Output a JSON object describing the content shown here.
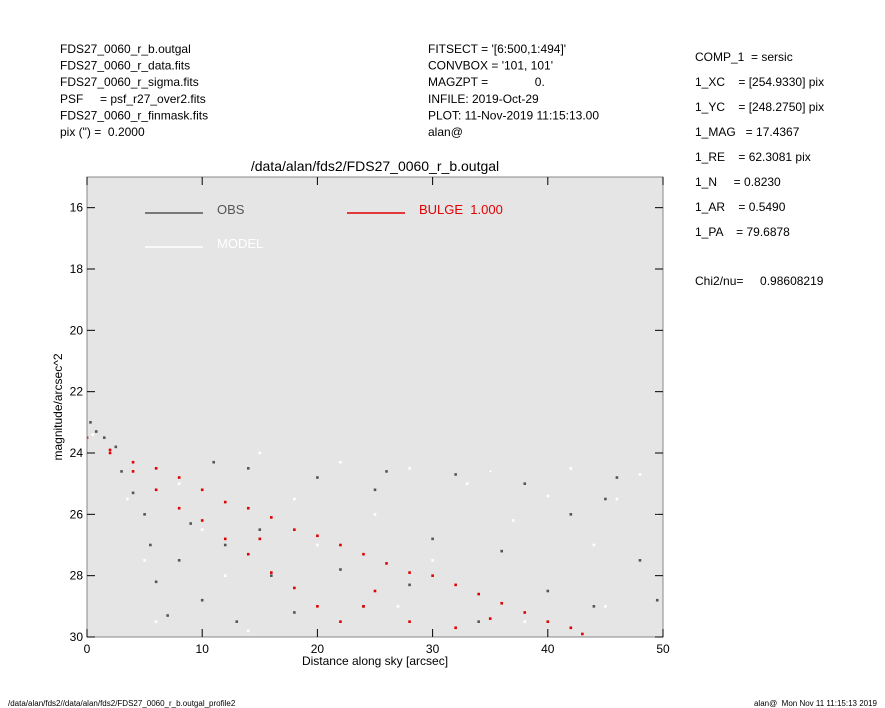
{
  "header": {
    "left": [
      "FDS27_0060_r_b.outgal",
      "FDS27_0060_r_data.fits",
      "FDS27_0060_r_sigma.fits",
      "PSF     = psf_r27_over2.fits",
      "FDS27_0060_r_finmask.fits",
      "pix (\") =  0.2000"
    ],
    "middle": [
      "FITSECT = '[6:500,1:494]'",
      "CONVBOX = '101, 101'",
      "MAGZPT =              0.",
      "INFILE: 2019-Oct-29",
      "PLOT: 11-Nov-2019 11:15:13.00",
      "alan@"
    ],
    "right": [
      "COMP_1  = sersic",
      "1_XC    = [254.9330] pix",
      "1_YC    = [248.2750] pix",
      "1_MAG   = 17.4367",
      "1_RE    = 62.3081 pix",
      "1_N     = 0.8230",
      "1_AR    = 0.5490",
      "1_PA    = 79.6878"
    ],
    "chi2": "Chi2/nu=     0.98608219"
  },
  "footer": {
    "left": "/data/alan/fds2//data/alan/fds2/FDS27_0060_r_b.outgal_profile2",
    "right": "alan@  Mon Nov 11 11:15:13 2019"
  },
  "chart_data": {
    "type": "scatter",
    "title": "/data/alan/fds2/FDS27_0060_r_b.outgal",
    "x_label": "Distance along sky [arcsec]",
    "y_label": "magnitude/arcsec^2",
    "xlim": [
      0,
      50
    ],
    "ylim": [
      30,
      15
    ],
    "xticks": [
      0,
      10,
      20,
      30,
      40,
      50
    ],
    "yticks": [
      16,
      18,
      20,
      22,
      24,
      26,
      28,
      30
    ],
    "background": "#e5e5e5",
    "series": [
      {
        "name": "OBS",
        "color": "#555555",
        "x": [
          0.3,
          0.8,
          1.5,
          2.5,
          3,
          4,
          5,
          5.5,
          6,
          7,
          8,
          9,
          10,
          11,
          12,
          13,
          14,
          15,
          16,
          18,
          20,
          22,
          24,
          26,
          28,
          30,
          32,
          34,
          36,
          38,
          40,
          42,
          44,
          46,
          48,
          49.5,
          25,
          35,
          45
        ],
        "y": [
          23.0,
          23.3,
          23.5,
          23.8,
          24.6,
          25.3,
          26.0,
          27.0,
          28.2,
          29.3,
          27.5,
          26.3,
          28.8,
          24.3,
          27.0,
          29.5,
          24.5,
          26.5,
          28.0,
          29.2,
          24.8,
          27.8,
          29.0,
          24.6,
          28.3,
          26.8,
          24.7,
          29.5,
          27.2,
          25.0,
          28.5,
          26.0,
          29.0,
          24.8,
          27.5,
          28.8,
          25.2,
          24.6,
          25.5
        ]
      },
      {
        "name": "MODEL",
        "color": "#ffffff",
        "x": [
          0.5,
          2,
          3.5,
          5,
          6,
          8,
          10,
          12,
          14,
          15,
          18,
          20,
          22,
          25,
          28,
          30,
          33,
          35,
          37,
          40,
          42,
          44,
          46,
          48,
          49.5,
          27,
          38,
          45
        ],
        "y": [
          23.4,
          24.0,
          25.5,
          27.5,
          29.5,
          25.0,
          26.5,
          28.0,
          29.8,
          24.0,
          25.5,
          27.0,
          24.3,
          26.0,
          24.5,
          27.5,
          25.0,
          24.6,
          26.2,
          25.4,
          24.5,
          27.0,
          25.5,
          24.7,
          26.0,
          29.0,
          29.5,
          29.0
        ]
      },
      {
        "name": "BULGE  1.000",
        "color": "#e00000",
        "x": [
          0,
          2,
          2,
          4,
          4,
          6,
          6,
          8,
          8,
          10,
          10,
          12,
          12,
          14,
          14,
          16,
          16,
          18,
          18,
          20,
          20,
          22,
          22,
          24,
          24,
          26,
          28,
          28,
          30,
          32,
          32,
          34,
          36,
          38,
          40,
          42,
          43,
          15,
          25,
          35
        ],
        "y": [
          23.5,
          23.9,
          24.0,
          24.3,
          24.6,
          24.5,
          25.2,
          24.8,
          25.8,
          25.2,
          26.2,
          25.6,
          26.8,
          25.8,
          27.3,
          26.1,
          27.9,
          26.5,
          28.4,
          26.7,
          29.0,
          27.0,
          29.5,
          27.3,
          29.0,
          27.6,
          27.9,
          29.5,
          28.0,
          28.3,
          29.7,
          28.6,
          28.9,
          29.2,
          29.5,
          29.7,
          29.9,
          26.8,
          28.5,
          29.4
        ]
      }
    ]
  }
}
